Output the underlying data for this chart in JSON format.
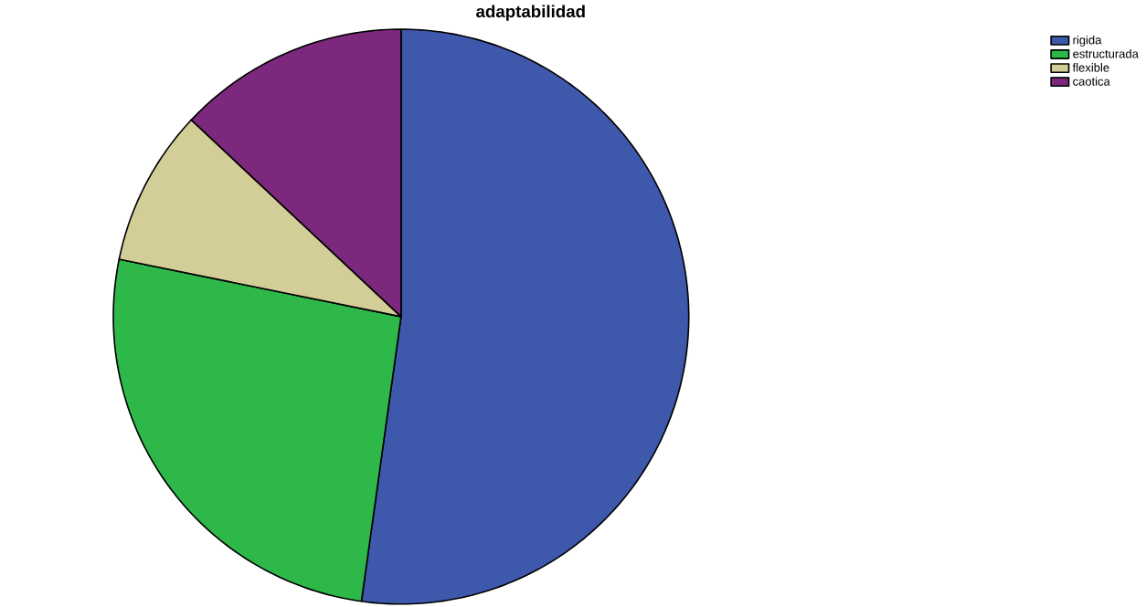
{
  "chart_data": {
    "type": "pie",
    "title": "adaptabilidad",
    "categories": [
      "rigida",
      "estructurada",
      "flexible",
      "caotica"
    ],
    "values": [
      52.2,
      26.0,
      8.8,
      13.0
    ],
    "colors": [
      "#3e58ac",
      "#2eb84a",
      "#d3cd97",
      "#7c287c"
    ],
    "legend": "top right"
  }
}
